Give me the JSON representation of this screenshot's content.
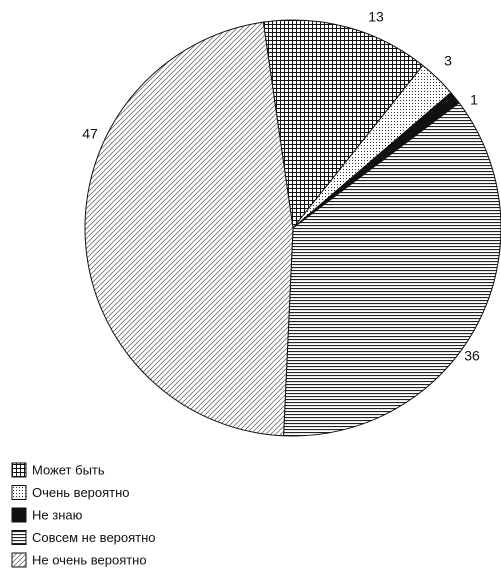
{
  "chart_data": {
    "type": "pie",
    "categories": [
      "Может быть",
      "Очень вероятно",
      "Не знаю",
      "Совсем не вероятно",
      "Не очень вероятно"
    ],
    "values": [
      13,
      3,
      1,
      36,
      47
    ],
    "patterns": [
      "grid",
      "dots",
      "solid",
      "horizontal",
      "diagonal"
    ],
    "legend": "bottom-left"
  }
}
